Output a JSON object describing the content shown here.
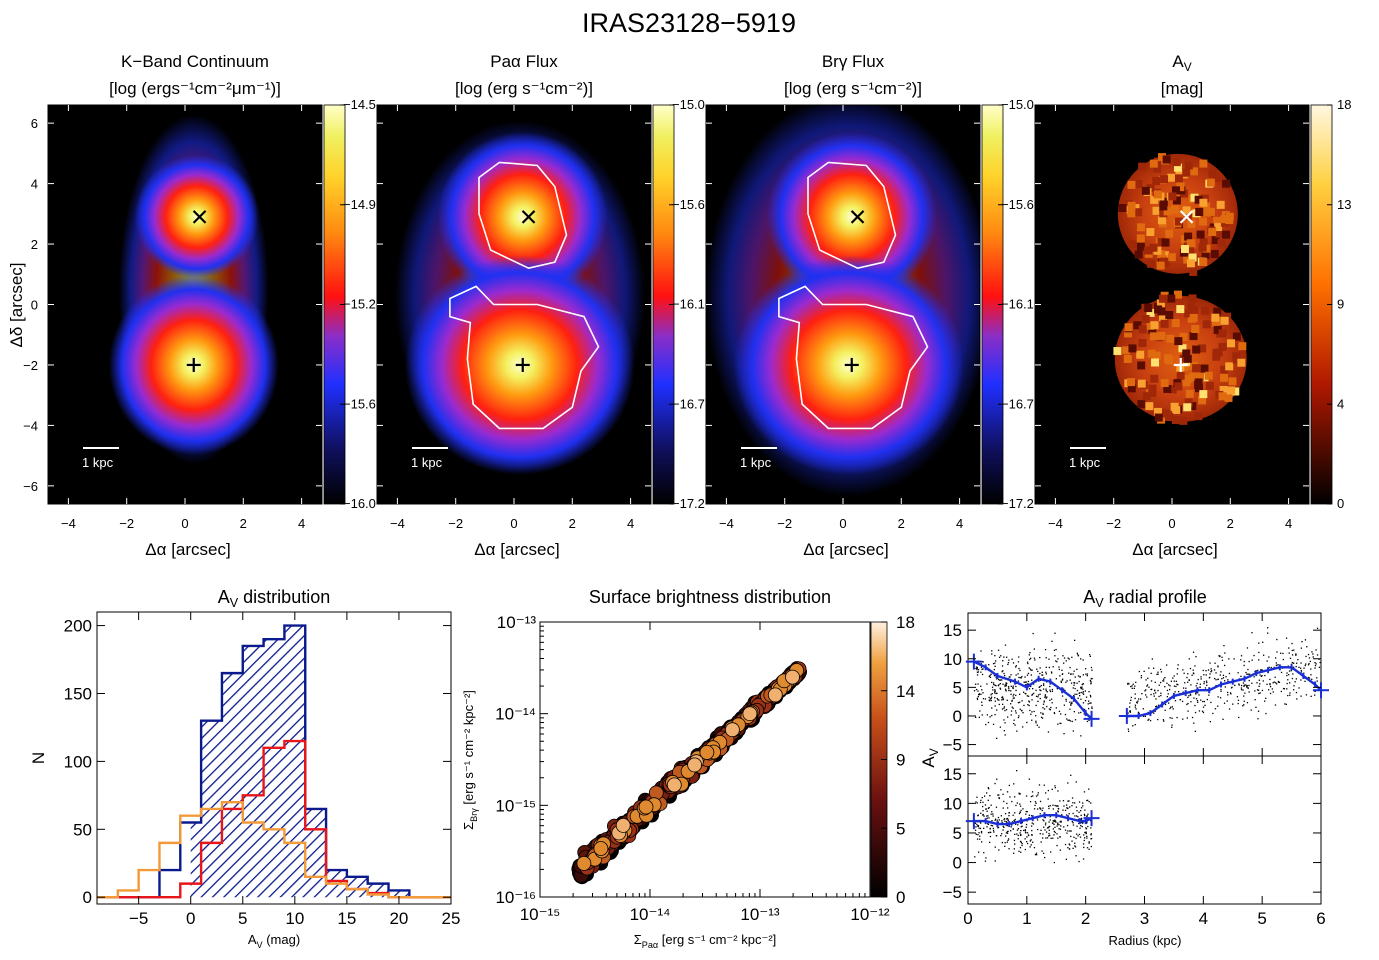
{
  "title": "IRAS23128−5919",
  "scale_bar_label": "1 kpc",
  "maps": [
    {
      "id": "kband",
      "title": "K−Band Continuum",
      "unit": "[log (ergs⁻¹cm⁻²μm⁻¹)]",
      "xlabel": "Δα [arcsec]",
      "ylabel": "Δδ [arcsec]",
      "cbar_ticks": [
        "−14.5",
        "−14.9",
        "−15.2",
        "−15.6",
        "−16.0"
      ],
      "cmap": "heat",
      "contour": false,
      "white_markers": false
    },
    {
      "id": "paa",
      "title": "Paα Flux",
      "unit": "[log (erg s⁻¹cm⁻²)]",
      "xlabel": "Δα [arcsec]",
      "cbar_ticks": [
        "−15.0",
        "−15.6",
        "−16.1",
        "−16.7",
        "−17.2"
      ],
      "cmap": "heat",
      "contour": true,
      "white_markers": false
    },
    {
      "id": "brg",
      "title": "Brγ Flux",
      "unit": "[log (erg s⁻¹cm⁻²)]",
      "xlabel": "Δα [arcsec]",
      "cbar_ticks": [
        "−15.0",
        "−15.6",
        "−16.1",
        "−16.7",
        "−17.2"
      ],
      "cmap": "heat",
      "contour": true,
      "white_markers": false
    },
    {
      "id": "av",
      "title": "A",
      "title_sub": "V",
      "unit": "[mag]",
      "xlabel": "Δα [arcsec]",
      "cbar_ticks": [
        "18",
        "13",
        "9",
        "4",
        "0"
      ],
      "cmap": "hot",
      "contour": false,
      "white_markers": true
    }
  ],
  "map_axes": {
    "xlim": [
      -4.7,
      4.7
    ],
    "ylim": [
      -6.6,
      6.6
    ],
    "xticks": [
      -4,
      -2,
      0,
      2,
      4
    ],
    "yticks": [
      6,
      4,
      2,
      0,
      -2,
      -4,
      -6
    ]
  },
  "nuclei": [
    {
      "name": "north",
      "x": 0.5,
      "y": 2.9,
      "marker": "x"
    },
    {
      "name": "south",
      "x": 0.3,
      "y": -2.0,
      "marker": "+"
    }
  ],
  "histogram": {
    "title": "A",
    "title_sub": "V",
    "title_rest": " distribution",
    "xlabel": "A",
    "xlabel_sub": "V",
    "xlabel_rest": " (mag)",
    "ylabel": "N",
    "xlim": [
      -9,
      25
    ],
    "ylim": [
      -5,
      210
    ],
    "xticks": [
      -5,
      0,
      5,
      10,
      15,
      20,
      25
    ],
    "yticks": [
      0,
      50,
      100,
      150,
      200
    ],
    "colors": {
      "all": "#0a1a8c",
      "north": "#e8161a",
      "south": "#f29a3a"
    }
  },
  "chart_data": [
    {
      "type": "bar",
      "name": "A_V distribution",
      "bin_edges": [
        -9,
        -7,
        -5,
        -3,
        -1,
        1,
        3,
        5,
        7,
        9,
        11,
        13,
        15,
        17,
        19,
        21,
        23,
        25
      ],
      "series": [
        {
          "values": [
            0,
            0,
            0,
            20,
            55,
            130,
            165,
            185,
            190,
            200,
            65,
            20,
            15,
            10,
            5,
            0,
            0
          ]
        },
        {
          "values": [
            0,
            0,
            0,
            0,
            10,
            40,
            65,
            75,
            110,
            115,
            50,
            12,
            6,
            3,
            0,
            0,
            0
          ]
        },
        {
          "values": [
            0,
            5,
            20,
            40,
            60,
            65,
            70,
            55,
            50,
            40,
            15,
            10,
            6,
            2,
            0,
            0,
            0
          ]
        }
      ]
    },
    {
      "type": "scatter",
      "name": "Surface brightness distribution",
      "xlabel": "Σ",
      "xlabel_sub": "Paα",
      "xlabel_rest": " [erg s⁻¹ cm⁻² kpc⁻²]",
      "ylabel": "Σ",
      "ylabel_sub": "Brγ",
      "ylabel_rest": " [erg s⁻¹ cm⁻² kpc⁻²]",
      "xscale": "log",
      "yscale": "log",
      "xlim": [
        1e-15,
        1e-12
      ],
      "ylim": [
        1e-16,
        1e-13
      ],
      "xtick_labels": [
        "10⁻¹⁵",
        "10⁻¹⁴",
        "10⁻¹³",
        "10⁻¹²"
      ],
      "ytick_labels": [
        "10⁻¹³",
        "10⁻¹⁴",
        "10⁻¹⁵",
        "10⁻¹⁶"
      ],
      "colorbar_ticks": [
        "18",
        "14",
        "9",
        "5",
        "0"
      ],
      "relation": {
        "x_start": 2.2e-15,
        "x_end": 2.3e-13,
        "y_start": 1.9e-16,
        "y_end": 3e-14
      }
    },
    {
      "type": "line",
      "name": "A_V radial profile",
      "xlabel": "Radius (kpc)",
      "ylabel": "A",
      "ylabel_sub": "V",
      "xlim": [
        0,
        6
      ],
      "ylim": [
        -7,
        18
      ],
      "xticks": [
        0,
        1,
        2,
        3,
        4,
        5,
        6
      ],
      "yticks": [
        15,
        10,
        5,
        0,
        -5
      ],
      "series": [
        {
          "name": "top",
          "segments": [
            {
              "x": [
                0.1,
                0.3,
                0.5,
                0.8,
                1.0,
                1.2,
                1.4,
                1.6,
                1.8,
                2.0,
                2.1
              ],
              "y": [
                9.5,
                8.5,
                7,
                6,
                5,
                6.5,
                6,
                4.5,
                3,
                0.5,
                -0.5
              ]
            },
            {
              "x": [
                2.7,
                2.9,
                3.1,
                3.3,
                3.5,
                3.7,
                3.9,
                4.1,
                4.3,
                4.5,
                4.7,
                4.9,
                5.1,
                5.3,
                5.5,
                5.7,
                5.9,
                6.0
              ],
              "y": [
                0,
                0,
                0.5,
                2,
                3.5,
                4,
                4.5,
                4.5,
                5.5,
                6,
                6.5,
                7.5,
                8,
                8.5,
                8.5,
                7,
                5.5,
                4.5
              ]
            }
          ]
        },
        {
          "name": "bottom",
          "segments": [
            {
              "x": [
                0.1,
                0.3,
                0.5,
                0.7,
                0.9,
                1.1,
                1.3,
                1.5,
                1.7,
                1.9,
                2.0,
                2.1
              ],
              "y": [
                7,
                7,
                6.5,
                6.5,
                7,
                7.5,
                8,
                8,
                7.5,
                7,
                7,
                7.5
              ]
            }
          ]
        }
      ]
    }
  ],
  "colors": {
    "profile_line": "#1a2fd6",
    "scatter_dots": "#000000",
    "hatch": "#0a1a8c"
  }
}
